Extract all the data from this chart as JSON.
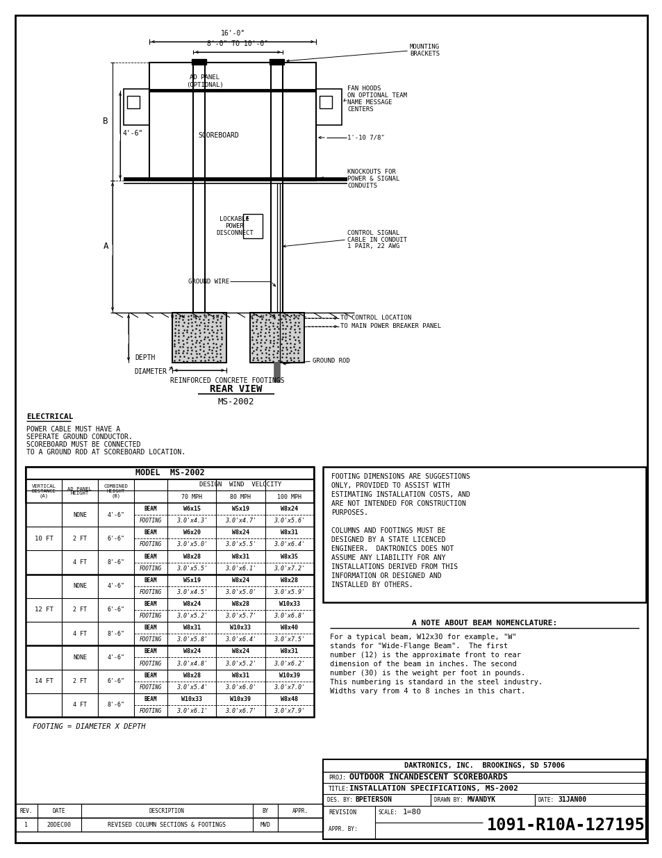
{
  "bg_color": "#ffffff",
  "table_data": [
    {
      "vert": "10 FT",
      "ad": "NONE",
      "comb": "4'-6\"",
      "type": "BEAM",
      "mph70": "W6x15",
      "mph80": "W5x19",
      "mph100": "W8x24"
    },
    {
      "vert": "10 FT",
      "ad": "NONE",
      "comb": "4'-6\"",
      "type": "FOOTING",
      "mph70": "3.0'x4.3'",
      "mph80": "3.0'x4.7'",
      "mph100": "3.0'x5.6'"
    },
    {
      "vert": "10 FT",
      "ad": "2 FT",
      "comb": "6'-6\"",
      "type": "BEAM",
      "mph70": "W6x20",
      "mph80": "W8x24",
      "mph100": "W8x31"
    },
    {
      "vert": "10 FT",
      "ad": "2 FT",
      "comb": "6'-6\"",
      "type": "FOOTING",
      "mph70": "3.0'x5.0'",
      "mph80": "3.0'x5.5'",
      "mph100": "3.0'x6.4'"
    },
    {
      "vert": "10 FT",
      "ad": "4 FT",
      "comb": "8'-6\"",
      "type": "BEAM",
      "mph70": "W8x28",
      "mph80": "W8x31",
      "mph100": "W8x35"
    },
    {
      "vert": "10 FT",
      "ad": "4 FT",
      "comb": "8'-6\"",
      "type": "FOOTING",
      "mph70": "3.0'x5.5'",
      "mph80": "3.0'x6.1'",
      "mph100": "3.0'x7.2'"
    },
    {
      "vert": "12 FT",
      "ad": "NONE",
      "comb": "4'-6\"",
      "type": "BEAM",
      "mph70": "W5x19",
      "mph80": "W8x24",
      "mph100": "W8x28"
    },
    {
      "vert": "12 FT",
      "ad": "NONE",
      "comb": "4'-6\"",
      "type": "FOOTING",
      "mph70": "3.0'x4.5'",
      "mph80": "3.0'x5.0'",
      "mph100": "3.0'x5.9'"
    },
    {
      "vert": "12 FT",
      "ad": "2 FT",
      "comb": "6'-6\"",
      "type": "BEAM",
      "mph70": "W8x24",
      "mph80": "W8x28",
      "mph100": "W10x33"
    },
    {
      "vert": "12 FT",
      "ad": "2 FT",
      "comb": "6'-6\"",
      "type": "FOOTING",
      "mph70": "3.0'x5.2'",
      "mph80": "3.0'x5.7'",
      "mph100": "3.0'x6.8'"
    },
    {
      "vert": "12 FT",
      "ad": "4 FT",
      "comb": "8'-6\"",
      "type": "BEAM",
      "mph70": "W8x31",
      "mph80": "W10x33",
      "mph100": "W8x40"
    },
    {
      "vert": "12 FT",
      "ad": "4 FT",
      "comb": "8'-6\"",
      "type": "FOOTING",
      "mph70": "3.0'x5.8'",
      "mph80": "3.0'x6.4'",
      "mph100": "3.0'x7.5'"
    },
    {
      "vert": "14 FT",
      "ad": "NONE",
      "comb": "4'-6\"",
      "type": "BEAM",
      "mph70": "W8x24",
      "mph80": "W8x24",
      "mph100": "W8x31"
    },
    {
      "vert": "14 FT",
      "ad": "NONE",
      "comb": "4'-6\"",
      "type": "FOOTING",
      "mph70": "3.0'x4.8'",
      "mph80": "3.0'x5.2'",
      "mph100": "3.0'x6.2'"
    },
    {
      "vert": "14 FT",
      "ad": "2 FT",
      "comb": "6'-6\"",
      "type": "BEAM",
      "mph70": "W8x28",
      "mph80": "W8x31",
      "mph100": "W10x39"
    },
    {
      "vert": "14 FT",
      "ad": "2 FT",
      "comb": "6'-6\"",
      "type": "FOOTING",
      "mph70": "3.0'x5.4'",
      "mph80": "3.0'x6.0'",
      "mph100": "3.0'x7.0'"
    },
    {
      "vert": "14 FT",
      "ad": "4 FT",
      "comb": "8'-6\"",
      "type": "BEAM",
      "mph70": "W10x33",
      "mph80": "W10x39",
      "mph100": "W8x48"
    },
    {
      "vert": "14 FT",
      "ad": "4 FT",
      "comb": "8'-6\"",
      "type": "FOOTING",
      "mph70": "3.0'x6.1'",
      "mph80": "3.0'x6.7'",
      "mph100": "3.0'x7.9'"
    }
  ]
}
